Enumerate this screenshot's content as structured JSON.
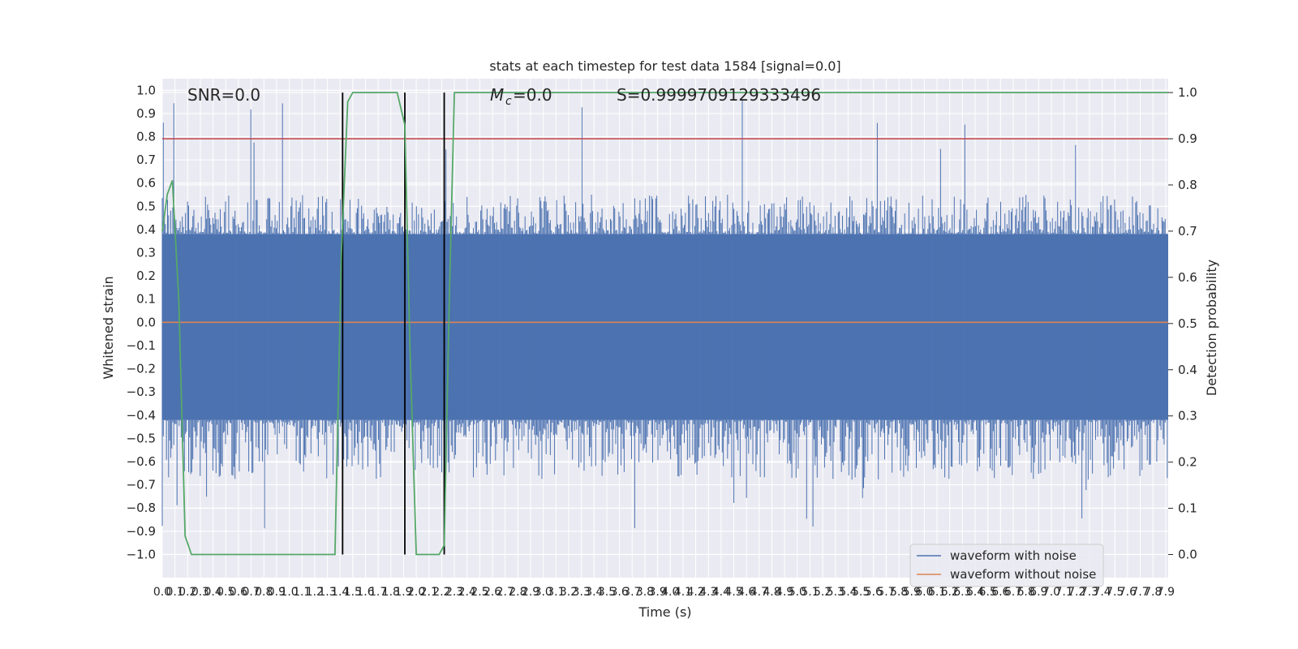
{
  "chart_data": {
    "type": "line",
    "title": "stats at each timestep for test data 1584 [signal=0.0]",
    "xlabel": "Time (s)",
    "ylabel": "Whitened strain",
    "y2label": "Detection probability",
    "xlim": [
      0.0,
      7.92
    ],
    "ylim": [
      -1.1,
      1.05
    ],
    "y2lim": [
      -0.05,
      1.03
    ],
    "x_tick_step": 0.1,
    "x_tick_count": 80,
    "y_ticks": [
      -1.0,
      -0.9,
      -0.8,
      -0.7,
      -0.6,
      -0.5,
      -0.4,
      -0.3,
      -0.2,
      -0.1,
      0.0,
      0.1,
      0.2,
      0.3,
      0.4,
      0.5,
      0.6,
      0.7,
      0.8,
      0.9,
      1.0
    ],
    "y_tick_labels": [
      "−1.0",
      "−0.9",
      "−0.8",
      "−0.7",
      "−0.6",
      "−0.5",
      "−0.4",
      "−0.3",
      "−0.2",
      "−0.1",
      "0.0",
      "0.1",
      "0.2",
      "0.3",
      "0.4",
      "0.5",
      "0.6",
      "0.7",
      "0.8",
      "0.9",
      "1.0"
    ],
    "y2_ticks": [
      0.0,
      0.1,
      0.2,
      0.3,
      0.4,
      0.5,
      0.6,
      0.7,
      0.8,
      0.9,
      1.0
    ],
    "y2_tick_labels": [
      "0.0",
      "0.1",
      "0.2",
      "0.3",
      "0.4",
      "0.5",
      "0.6",
      "0.7",
      "0.8",
      "0.9",
      "1.0"
    ],
    "grid": true,
    "annotations": {
      "snr": "SNR=0.0",
      "mc": "=0.0",
      "mc_symbol": "M",
      "mc_sub": "c",
      "s": "S=0.9999709129333496"
    },
    "vertical_lines_x": [
      1.42,
      1.91,
      2.22
    ],
    "threshold_line_y2": 0.9,
    "noise_band_ymin": -0.42,
    "noise_band_ymax": 0.38,
    "noise_envelope_max": 0.96,
    "noise_envelope_min": -0.9,
    "series": [
      {
        "name": "waveform with noise",
        "color": "#4c72b0"
      },
      {
        "name": "waveform without noise",
        "color": "#dd8452",
        "y_constant": 0.0
      },
      {
        "color": "#55a868",
        "axis": "y2",
        "x": [
          0.0,
          0.04,
          0.08,
          0.13,
          0.18,
          0.23,
          0.28,
          0.35,
          0.5,
          1.0,
          1.3,
          1.36,
          1.41,
          1.46,
          1.5,
          1.6,
          1.85,
          1.91,
          1.95,
          2.0,
          2.1,
          2.18,
          2.22,
          2.26,
          2.3,
          3.0,
          4.0,
          5.0,
          6.0,
          7.0,
          7.92
        ],
        "y": [
          0.7,
          0.78,
          0.81,
          0.55,
          0.04,
          0.0,
          0.0,
          0.0,
          0.0,
          0.0,
          0.0,
          0.0,
          0.65,
          0.98,
          1.0,
          1.0,
          1.0,
          0.93,
          0.45,
          0.0,
          0.0,
          0.0,
          0.02,
          0.55,
          1.0,
          1.0,
          1.0,
          1.0,
          1.0,
          1.0,
          1.0
        ]
      }
    ],
    "legend": {
      "placement": "lower-right",
      "entries": [
        "waveform with noise",
        "waveform without noise"
      ]
    },
    "threshold_color": "#c44e52",
    "vertical_line_color": "#000000"
  }
}
